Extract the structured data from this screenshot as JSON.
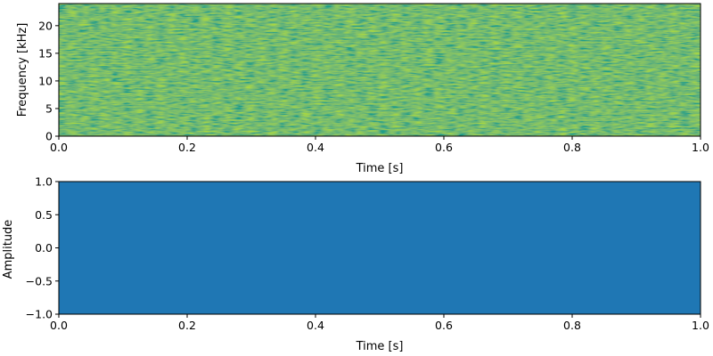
{
  "chart_data": [
    {
      "type": "heatmap",
      "title": "",
      "xlabel": "Time [s]",
      "ylabel": "Frequency [kHz]",
      "xlim": [
        0.0,
        1.0
      ],
      "ylim": [
        0,
        24
      ],
      "x_ticks": [
        "0.0",
        "0.2",
        "0.4",
        "0.6",
        "0.8",
        "1.0"
      ],
      "x_tick_values": [
        0.0,
        0.2,
        0.4,
        0.6,
        0.8,
        1.0
      ],
      "y_ticks": [
        "0",
        "5",
        "10",
        "15",
        "20"
      ],
      "y_tick_values": [
        0,
        5,
        10,
        15,
        20
      ],
      "colormap": "viridis",
      "description_values": "broadband noise spectrogram; intensity roughly uniform across 0–24 kHz for 0–1 s",
      "grid": false
    },
    {
      "type": "area",
      "title": "",
      "xlabel": "Time [s]",
      "ylabel": "Amplitude",
      "xlim": [
        0.0,
        1.0
      ],
      "ylim": [
        -1.0,
        1.0
      ],
      "x_ticks": [
        "0.0",
        "0.2",
        "0.4",
        "0.6",
        "0.8",
        "1.0"
      ],
      "x_tick_values": [
        0.0,
        0.2,
        0.4,
        0.6,
        0.8,
        1.0
      ],
      "y_ticks": [
        "1.0",
        "0.5",
        "0.0",
        "−0.5",
        "−1.0"
      ],
      "y_tick_values": [
        1.0,
        0.5,
        0.0,
        -0.5,
        -1.0
      ],
      "series": [
        {
          "color": "#1f77b4",
          "x": [
            0.0,
            1.0
          ],
          "y_min": [
            -1.0,
            -1.0
          ],
          "y_max": [
            1.0,
            1.0
          ]
        }
      ],
      "grid": false
    }
  ]
}
